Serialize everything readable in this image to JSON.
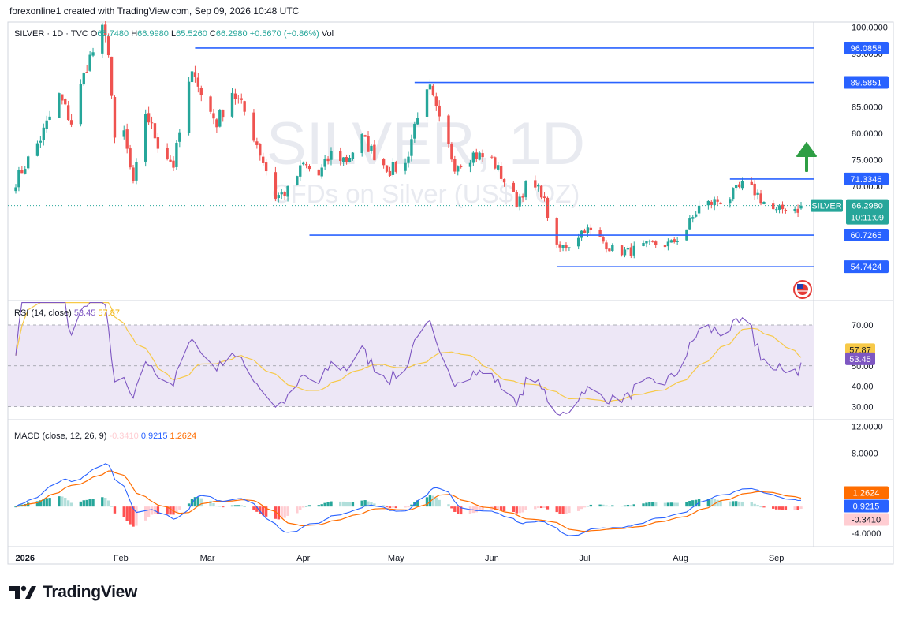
{
  "header": {
    "credit": "forexonline1 created with TradingView.com, Sep 09, 2026 10:48 UTC",
    "symbol": "SILVER · 1D · TVC",
    "o_label": "O",
    "o_value": "65.7480",
    "h_label": "H",
    "h_value": "66.9980",
    "l_label": "L",
    "l_value": "65.5260",
    "c_label": "C",
    "c_value": "66.2980",
    "change": "+0.5670 (+0.86%)",
    "vol_label": "Vol"
  },
  "watermark": {
    "line1": "SILVER, 1D",
    "line2": "CFDs on Silver (US$ / OZ)"
  },
  "branding": {
    "logo_text": "TradingView"
  },
  "colors": {
    "up": "#26a69a",
    "down": "#ef5350",
    "level_line": "#2962ff",
    "rsi_line": "#7e57c2",
    "rsi_ma": "#f7c948",
    "rsi_band": "#ede7f6",
    "macd_line": "#2962ff",
    "signal_line": "#ff6d00",
    "arrow": "#2e9e44"
  },
  "chart_data": [
    {
      "type": "candlestick",
      "symbol": "SILVER",
      "timeframe": "1D",
      "ylim": [
        48.5,
        101
      ],
      "y_ticks": [
        "100.0000",
        "95.0000",
        "85.0000",
        "80.0000",
        "75.0000",
        "70.0000"
      ],
      "x_ticks": [
        "2026",
        "Feb",
        "Mar",
        "Apr",
        "May",
        "Jun",
        "Jul",
        "Aug",
        "Sep"
      ],
      "levels": [
        {
          "value": 96.0858,
          "label": "96.0858",
          "from": "Feb 25"
        },
        {
          "value": 89.5851,
          "label": "89.5851",
          "from": "May 07"
        },
        {
          "value": 71.3346,
          "label": "71.3346",
          "from": "Aug 17"
        },
        {
          "value": 60.7265,
          "label": "60.7265",
          "from": "Apr 03"
        },
        {
          "value": 54.7424,
          "label": "54.7424",
          "from": "Jun 22"
        }
      ],
      "last_price": {
        "label": "SILVER",
        "value": "66.2980",
        "countdown": "10:11:09"
      },
      "annotations": [
        "green up arrow",
        "US flag event marker"
      ],
      "anchors": [
        [
          "2025-12-29",
          71
        ],
        [
          "2026-01-06",
          79
        ],
        [
          "2026-01-12",
          87
        ],
        [
          "2026-01-16",
          82
        ],
        [
          "2026-01-21",
          93
        ],
        [
          "2026-01-26",
          99
        ],
        [
          "2026-01-28",
          96
        ],
        [
          "2026-01-30",
          78
        ],
        [
          "2026-02-02",
          80
        ],
        [
          "2026-02-05",
          70
        ],
        [
          "2026-02-09",
          84
        ],
        [
          "2026-02-13",
          78
        ],
        [
          "2026-02-18",
          74
        ],
        [
          "2026-02-23",
          89
        ],
        [
          "2026-02-25",
          92
        ],
        [
          "2026-02-27",
          87
        ],
        [
          "2026-03-04",
          82
        ],
        [
          "2026-03-09",
          88
        ],
        [
          "2026-03-13",
          84
        ],
        [
          "2026-03-17",
          78
        ],
        [
          "2026-03-23",
          68
        ],
        [
          "2026-03-27",
          69
        ],
        [
          "2026-04-01",
          74
        ],
        [
          "2026-04-06",
          72
        ],
        [
          "2026-04-10",
          76
        ],
        [
          "2026-04-15",
          75
        ],
        [
          "2026-04-20",
          79
        ],
        [
          "2026-04-24",
          76
        ],
        [
          "2026-04-29",
          73
        ],
        [
          "2026-05-04",
          74
        ],
        [
          "2026-05-08",
          84
        ],
        [
          "2026-05-12",
          88
        ],
        [
          "2026-05-15",
          82
        ],
        [
          "2026-05-20",
          74
        ],
        [
          "2026-05-26",
          76
        ],
        [
          "2026-06-01",
          75
        ],
        [
          "2026-06-05",
          71
        ],
        [
          "2026-06-09",
          67
        ],
        [
          "2026-06-12",
          70
        ],
        [
          "2026-06-17",
          69
        ],
        [
          "2026-06-22",
          58
        ],
        [
          "2026-06-26",
          59
        ],
        [
          "2026-07-01",
          62
        ],
        [
          "2026-07-06",
          60
        ],
        [
          "2026-07-10",
          58
        ],
        [
          "2026-07-15",
          57.5
        ],
        [
          "2026-07-20",
          58.5
        ],
        [
          "2026-07-24",
          59
        ],
        [
          "2026-07-29",
          59
        ],
        [
          "2026-08-03",
          62
        ],
        [
          "2026-08-07",
          66
        ],
        [
          "2026-08-12",
          67
        ],
        [
          "2026-08-17",
          68
        ],
        [
          "2026-08-21",
          70
        ],
        [
          "2026-08-25",
          69
        ],
        [
          "2026-08-28",
          67
        ],
        [
          "2026-09-01",
          65
        ],
        [
          "2026-09-04",
          66
        ],
        [
          "2026-09-08",
          65.7
        ],
        [
          "2026-09-09",
          66.298
        ]
      ]
    },
    {
      "type": "line",
      "title": "RSI (14, close)",
      "values_text": [
        "53.45",
        "57.87"
      ],
      "series": [
        {
          "name": "RSI",
          "last": 53.45
        },
        {
          "name": "RSI-based MA",
          "last": 57.87
        }
      ],
      "y_ticks": [
        "70.00",
        "50.00",
        "40.00",
        "30.00"
      ],
      "ylim": [
        24,
        82
      ],
      "band": [
        30,
        70
      ]
    },
    {
      "type": "bar",
      "title": "MACD (close, 12, 26, 9)",
      "values_text": [
        "-0.3410",
        "0.9215",
        "1.2624"
      ],
      "series": [
        {
          "name": "Histogram",
          "last": -0.341
        },
        {
          "name": "MACD",
          "last": 0.9215
        },
        {
          "name": "Signal",
          "last": 1.2624
        }
      ],
      "y_ticks": [
        "12.0000",
        "8.0000",
        "-4.0000"
      ],
      "ylim": [
        -6.0,
        13.0
      ]
    }
  ]
}
